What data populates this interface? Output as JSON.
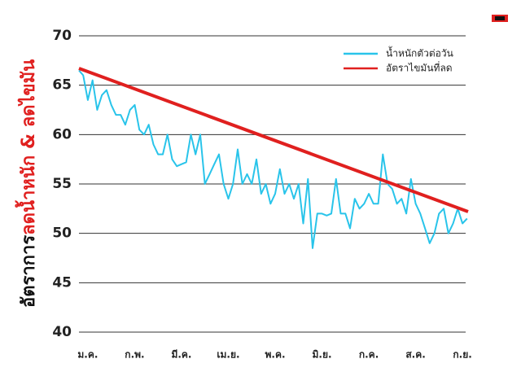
{
  "chart_data": {
    "type": "line",
    "y_label_parts": [
      "อัตราการ",
      "ลดน้ำหนัก & ลดไขมัน"
    ],
    "ylim": [
      40,
      70
    ],
    "yticks": [
      40,
      45,
      50,
      55,
      60,
      65,
      70
    ],
    "grid": true,
    "xlim": [
      -0.19,
      8.12
    ],
    "xticks": [
      {
        "value": 0,
        "label": "ม.ค."
      },
      {
        "value": 1,
        "label": "ก.พ."
      },
      {
        "value": 2,
        "label": "มี.ค."
      },
      {
        "value": 3,
        "label": "เม.ย."
      },
      {
        "value": 4,
        "label": "พ.ค."
      },
      {
        "value": 5,
        "label": "มิ.ย."
      },
      {
        "value": 6,
        "label": "ก.ค."
      },
      {
        "value": 7,
        "label": "ส.ค."
      },
      {
        "value": 8,
        "label": "ก.ย."
      }
    ],
    "legend": "upper right",
    "series": [
      {
        "name": "น้ำหนักตัวต่อวัน",
        "color": "#29c4ea",
        "width": 2,
        "x": [
          -0.19,
          -0.1,
          0,
          0.1,
          0.2,
          0.3,
          0.4,
          0.5,
          0.6,
          0.7,
          0.8,
          0.9,
          1,
          1.1,
          1.2,
          1.3,
          1.4,
          1.5,
          1.6,
          1.7,
          1.8,
          1.9,
          2,
          2.1,
          2.2,
          2.3,
          2.4,
          2.5,
          2.6,
          2.7,
          2.8,
          2.9,
          3,
          3.1,
          3.2,
          3.3,
          3.4,
          3.5,
          3.6,
          3.7,
          3.8,
          3.9,
          4,
          4.1,
          4.2,
          4.3,
          4.4,
          4.5,
          4.6,
          4.7,
          4.8,
          4.9,
          5,
          5.1,
          5.2,
          5.3,
          5.4,
          5.5,
          5.6,
          5.7,
          5.8,
          5.9,
          6,
          6.1,
          6.2,
          6.3,
          6.4,
          6.5,
          6.6,
          6.7,
          6.8,
          6.9,
          7,
          7.1,
          7.2,
          7.3,
          7.4,
          7.5,
          7.6,
          7.7,
          7.8,
          7.9,
          8,
          8.1
        ],
        "values": [
          66.5,
          66,
          63.5,
          65.5,
          62.5,
          64,
          64.5,
          63,
          62,
          62,
          61,
          62.5,
          63,
          60.5,
          60,
          61,
          59,
          58,
          58,
          60,
          57.5,
          56.8,
          57,
          57.2,
          60,
          58,
          60,
          55,
          56,
          57,
          58,
          55,
          53.5,
          55,
          58.5,
          55,
          56,
          55,
          57.5,
          54,
          55,
          53,
          54,
          56.5,
          54,
          55,
          53.5,
          55,
          51,
          55.5,
          48.5,
          52,
          52,
          51.8,
          52,
          55.5,
          52,
          52,
          50.5,
          53.5,
          52.5,
          53,
          54,
          53,
          53,
          58,
          55,
          54.5,
          53,
          53.5,
          52,
          55.5,
          53,
          52,
          50.5,
          49,
          50,
          52,
          52.5,
          50,
          51,
          52.5,
          51,
          51.5
        ]
      },
      {
        "name": "อัตราไขมันที่ลด",
        "color": "#e0201f",
        "width": 4,
        "x": [
          -0.19,
          8.12
        ],
        "values": [
          66.7,
          52.2
        ]
      }
    ]
  }
}
